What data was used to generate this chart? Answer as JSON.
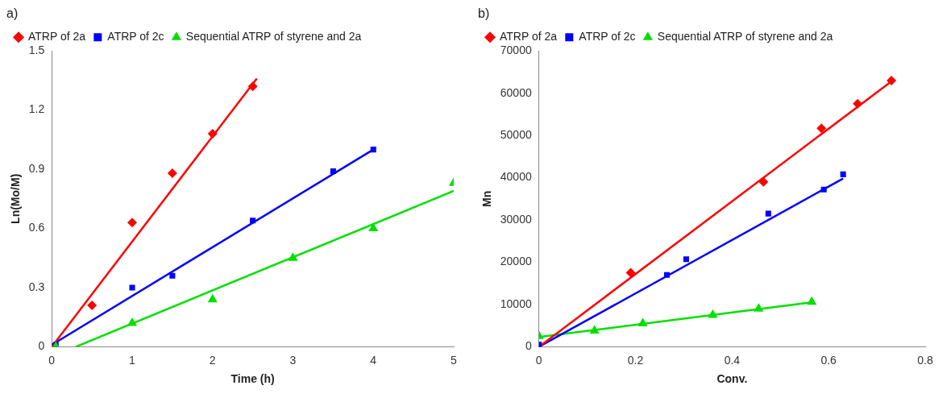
{
  "chart_data": [
    {
      "type": "scatter",
      "title": "a)",
      "xlabel": "Time (h)",
      "ylabel": "Ln(Mo/M)",
      "xlim": [
        0,
        5
      ],
      "xticks": [
        0,
        1,
        2,
        3,
        4,
        5
      ],
      "ylim": [
        0,
        1.5
      ],
      "yticks": [
        0,
        0.3,
        0.6,
        0.9,
        1.2,
        1.5
      ],
      "grid": false,
      "legend": "top left",
      "series": [
        {
          "name": "ATRP of 2a",
          "color": "#ff0000",
          "marker": "diamond",
          "x": [
            0.5,
            1,
            1.5,
            2,
            2.5
          ],
          "values": [
            0.21,
            0.63,
            0.88,
            1.08,
            1.32
          ]
        },
        {
          "name": "ATRP of 2c",
          "color": "#0000ff",
          "marker": "square",
          "x": [
            0.05,
            1,
            1.5,
            2.5,
            3.5,
            4
          ],
          "values": [
            0.01,
            0.3,
            0.36,
            0.64,
            0.89,
            1.0
          ]
        },
        {
          "name": "Sequential ATRP of styrene and 2a",
          "color": "#00e000",
          "marker": "triangle",
          "x": [
            0.05,
            1,
            2,
            3,
            4,
            5
          ],
          "values": [
            0,
            0.12,
            0.24,
            0.45,
            0.6,
            0.83
          ]
        },
        {
          "type": "line",
          "color": "#ff0000",
          "marker": "none",
          "line_style": "solid",
          "x": [
            0,
            2.55
          ],
          "values": [
            0,
            1.36
          ]
        },
        {
          "type": "line",
          "color": "#0000ff",
          "marker": "none",
          "line_style": "solid",
          "x": [
            0,
            4
          ],
          "values": [
            0.01,
            1.0
          ]
        },
        {
          "type": "line",
          "color": "#00e000",
          "marker": "none",
          "line_style": "solid",
          "x": [
            0.3,
            5
          ],
          "values": [
            0,
            0.79
          ]
        }
      ]
    },
    {
      "type": "scatter",
      "title": "b)",
      "xlabel": "Conv.",
      "ylabel": "Mn",
      "xlim": [
        0,
        0.8
      ],
      "xticks": [
        0,
        0.2,
        0.4,
        0.6,
        0.8
      ],
      "ylim": [
        0,
        70000
      ],
      "yticks": [
        0,
        10000,
        20000,
        30000,
        40000,
        50000,
        60000,
        70000
      ],
      "grid": false,
      "legend": "top left",
      "series": [
        {
          "name": "ATRP of 2a",
          "color": "#ff0000",
          "marker": "diamond",
          "x": [
            0.19,
            0.465,
            0.585,
            0.66,
            0.73
          ],
          "values": [
            17500,
            39000,
            51700,
            57500,
            63000
          ]
        },
        {
          "name": "ATRP of 2c",
          "color": "#0000ff",
          "marker": "square",
          "x": [
            0,
            0.265,
            0.305,
            0.475,
            0.59,
            0.63
          ],
          "values": [
            500,
            17000,
            20700,
            31500,
            37200,
            40800
          ]
        },
        {
          "name": "Sequential ATRP of styrene and 2a",
          "color": "#00e000",
          "marker": "triangle",
          "x": [
            0,
            0.115,
            0.215,
            0.36,
            0.455,
            0.565
          ],
          "values": [
            2500,
            3800,
            5500,
            7500,
            9000,
            10600
          ]
        },
        {
          "type": "line",
          "color": "#ff0000",
          "marker": "none",
          "line_style": "solid",
          "x": [
            0,
            0.73
          ],
          "values": [
            0,
            62800
          ]
        },
        {
          "type": "line",
          "color": "#0000ff",
          "marker": "none",
          "line_style": "solid",
          "x": [
            0,
            0.63
          ],
          "values": [
            0,
            39800
          ]
        },
        {
          "type": "line",
          "color": "#00e000",
          "marker": "none",
          "line_style": "solid",
          "x": [
            0,
            0.565
          ],
          "values": [
            2300,
            10500
          ]
        }
      ]
    }
  ]
}
